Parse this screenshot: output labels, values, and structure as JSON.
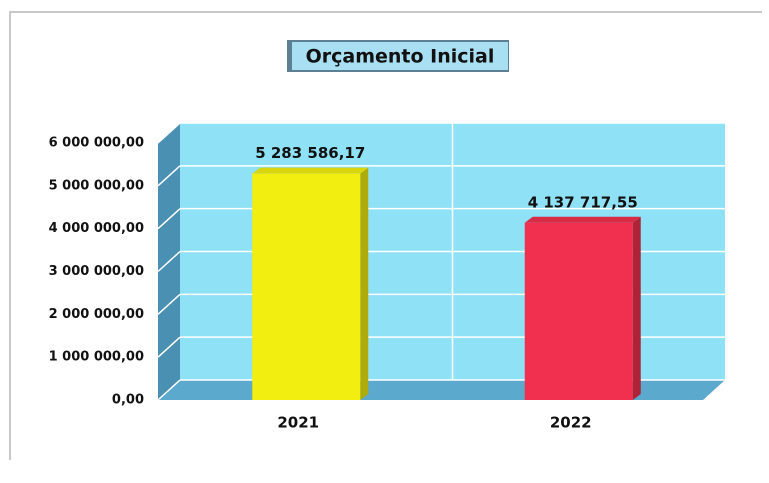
{
  "chart_data": {
    "type": "bar3d",
    "title": "Orçamento Inicial",
    "categories": [
      "2021",
      "2022"
    ],
    "values": [
      5283586.17,
      4137717.55
    ],
    "value_labels": [
      "5 283 586,17",
      "4 137 717,55"
    ],
    "colors": [
      "#f2ee10",
      "#f0304e"
    ],
    "ylim": [
      0,
      6000000
    ],
    "yticks": [
      {
        "value": 0,
        "label": "0,00"
      },
      {
        "value": 1000000,
        "label": "1 000 000,00"
      },
      {
        "value": 2000000,
        "label": "2 000 000,00"
      },
      {
        "value": 3000000,
        "label": "3 000 000,00"
      },
      {
        "value": 4000000,
        "label": "4 000 000,00"
      },
      {
        "value": 5000000,
        "label": "5 000 000,00"
      },
      {
        "value": 6000000,
        "label": "6 000 000,00"
      }
    ],
    "grid": true
  }
}
